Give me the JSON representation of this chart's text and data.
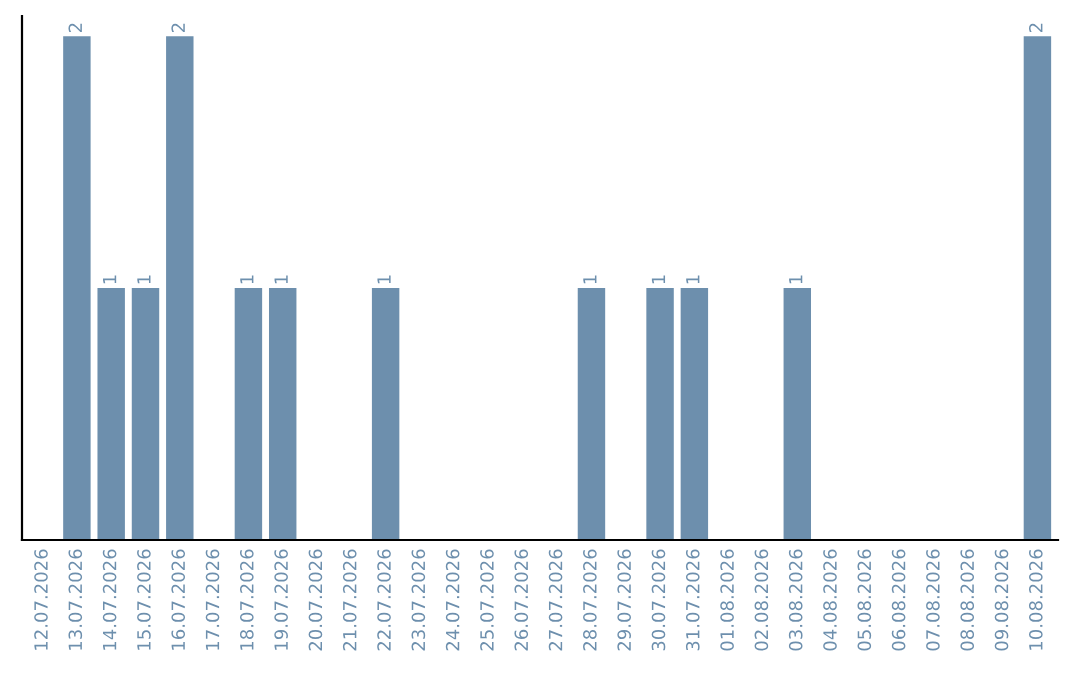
{
  "chart_data": {
    "type": "bar",
    "categories": [
      "12.07.2026",
      "13.07.2026",
      "14.07.2026",
      "15.07.2026",
      "16.07.2026",
      "17.07.2026",
      "18.07.2026",
      "19.07.2026",
      "20.07.2026",
      "21.07.2026",
      "22.07.2026",
      "23.07.2026",
      "24.07.2026",
      "25.07.2026",
      "26.07.2026",
      "27.07.2026",
      "28.07.2026",
      "29.07.2026",
      "30.07.2026",
      "31.07.2026",
      "01.08.2026",
      "02.08.2026",
      "03.08.2026",
      "04.08.2026",
      "05.08.2026",
      "06.08.2026",
      "07.08.2026",
      "08.08.2026",
      "09.08.2026",
      "10.08.2026"
    ],
    "values": [
      0,
      2,
      1,
      1,
      2,
      0,
      1,
      1,
      0,
      0,
      1,
      0,
      0,
      0,
      0,
      0,
      1,
      0,
      1,
      1,
      0,
      0,
      1,
      0,
      0,
      0,
      0,
      0,
      0,
      2
    ],
    "value_labels": [
      null,
      "2",
      "1",
      "1",
      "2",
      null,
      "1",
      "1",
      null,
      null,
      "1",
      null,
      null,
      null,
      null,
      null,
      "1",
      null,
      "1",
      "1",
      null,
      null,
      "1",
      null,
      null,
      null,
      null,
      null,
      null,
      "2"
    ],
    "color": "#6d8fad",
    "grid": false,
    "legend": false
  }
}
